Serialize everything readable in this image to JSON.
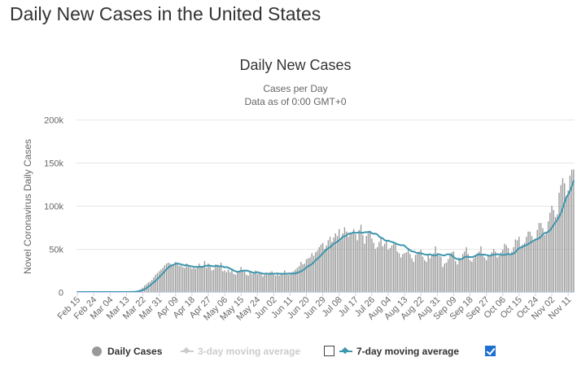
{
  "page_title": "Daily New Cases in the United States",
  "colors": {
    "bar": "#999999",
    "line": "#3d96ae",
    "grid": "#e6e6e6",
    "text": "#333333",
    "axis_text": "#666666",
    "legend_muted": "#cccccc",
    "checkbox_checked": "#1f6fd1"
  },
  "chart_data": {
    "type": "bar",
    "title": "Daily New Cases",
    "subtitle_lines": [
      "Cases per Day",
      "Data as of 0:00 GMT+0"
    ],
    "ylabel": "Novel Coronavirus Daily Cases",
    "xlabel": "",
    "ylim": [
      0,
      200000
    ],
    "yticks": [
      0,
      50000,
      100000,
      150000,
      200000
    ],
    "ytick_labels": [
      "0",
      "50k",
      "100k",
      "150k",
      "200k"
    ],
    "xtick_labels": [
      "Feb 15",
      "Feb 24",
      "Mar 04",
      "Mar 13",
      "Mar 22",
      "Mar 31",
      "Apr 09",
      "Apr 18",
      "Apr 27",
      "May 06",
      "May 15",
      "May 24",
      "Jun 02",
      "Jun 11",
      "Jun 20",
      "Jun 29",
      "Jul 08",
      "Jul 17",
      "Jul 26",
      "Aug 04",
      "Aug 13",
      "Aug 22",
      "Aug 31",
      "Sep 09",
      "Sep 18",
      "Sep 27",
      "Oct 06",
      "Oct 15",
      "Oct 24",
      "Nov 02",
      "Nov 11"
    ],
    "x_start_date": "2020-02-15",
    "x_tick_interval_days": 9,
    "grid": true,
    "legend_position": "bottom",
    "series": [
      {
        "name": "Daily Cases",
        "values": [
          0,
          0,
          0,
          0,
          0,
          0,
          0,
          0,
          0,
          0,
          0,
          0,
          0,
          0,
          0,
          0,
          0,
          0,
          0,
          0,
          0,
          0,
          0,
          0,
          0,
          0,
          0,
          100,
          200,
          300,
          500,
          700,
          1000,
          1500,
          2500,
          3500,
          5000,
          7500,
          9000,
          11000,
          12000,
          14000,
          17000,
          20000,
          22000,
          24000,
          26000,
          28000,
          31000,
          33000,
          34000,
          33000,
          32000,
          31000,
          35000,
          33000,
          30000,
          31000,
          29000,
          28000,
          33000,
          31000,
          29000,
          27000,
          28000,
          27000,
          29000,
          33000,
          30000,
          29000,
          36000,
          28000,
          33000,
          30000,
          25000,
          26000,
          32000,
          30000,
          29000,
          34000,
          24000,
          25000,
          23000,
          26000,
          23000,
          27000,
          21000,
          20000,
          24000,
          24000,
          29000,
          25000,
          24000,
          20000,
          19000,
          24000,
          21000,
          22000,
          25000,
          21000,
          22000,
          21000,
          18000,
          20000,
          22000,
          20000,
          23000,
          24000,
          22000,
          19000,
          21000,
          19000,
          21000,
          21000,
          25000,
          22000,
          20000,
          21000,
          23000,
          24000,
          26000,
          28000,
          30000,
          35000,
          32000,
          33000,
          38000,
          39000,
          40000,
          45000,
          42000,
          46000,
          48000,
          52000,
          55000,
          57000,
          50000,
          54000,
          60000,
          64000,
          58000,
          63000,
          68000,
          65000,
          73000,
          60000,
          68000,
          75000,
          70000,
          64000,
          69000,
          68000,
          73000,
          67000,
          60000,
          72000,
          78000,
          66000,
          56000,
          65000,
          70000,
          71000,
          62000,
          57000,
          50000,
          52000,
          58000,
          63000,
          53000,
          56000,
          59000,
          49000,
          51000,
          54000,
          56000,
          57000,
          47000,
          45000,
          40000,
          44000,
          45000,
          46000,
          51000,
          44000,
          39000,
          35000,
          43000,
          44000,
          47000,
          49000,
          41000,
          37000,
          35000,
          44000,
          39000,
          43000,
          45000,
          53000,
          45000,
          42000,
          41000,
          29000,
          33000,
          34000,
          38000,
          43000,
          46000,
          47000,
          36000,
          32000,
          40000,
          38000,
          44000,
          47000,
          52000,
          44000,
          37000,
          35000,
          39000,
          42000,
          45000,
          47000,
          53000,
          43000,
          40000,
          37000,
          43000,
          41000,
          46000,
          50000,
          47000,
          40000,
          42000,
          46000,
          49000,
          56000,
          54000,
          51000,
          43000,
          47000,
          52000,
          61000,
          60000,
          64000,
          53000,
          55000,
          57000,
          64000,
          70000,
          70000,
          65000,
          60000,
          62000,
          72000,
          80000,
          80000,
          74000,
          66000,
          70000,
          82000,
          92000,
          100000,
          95000,
          87000,
          90000,
          115000,
          124000,
          132000,
          126000,
          110000,
          118000,
          135000,
          142000,
          142000
        ]
      },
      {
        "name": "3-day moving average",
        "visible": false
      },
      {
        "name": "7-day moving average",
        "visible": true,
        "values": [
          0,
          0,
          0,
          0,
          0,
          0,
          0,
          0,
          0,
          0,
          0,
          0,
          0,
          0,
          0,
          0,
          0,
          0,
          0,
          0,
          0,
          0,
          0,
          0,
          0,
          0,
          0,
          14,
          43,
          86,
          157,
          257,
          400,
          614,
          971,
          1471,
          2186,
          3257,
          4543,
          6114,
          7786,
          9428,
          11071,
          12928,
          15000,
          17143,
          19286,
          21571,
          24000,
          26286,
          28286,
          29857,
          31000,
          31714,
          32714,
          33000,
          32571,
          32143,
          31571,
          30714,
          31286,
          30714,
          30143,
          29714,
          29286,
          29143,
          29143,
          29143,
          29286,
          29143,
          30286,
          30286,
          30857,
          30571,
          30143,
          29714,
          30143,
          30571,
          29571,
          30143,
          29429,
          28571,
          28857,
          28285,
          27142,
          26142,
          24856,
          24000,
          23428,
          23856,
          24142,
          24856,
          24714,
          24856,
          24286,
          23571,
          22857,
          22429,
          22143,
          23143,
          22286,
          22000,
          21286,
          21143,
          21429,
          21143,
          20857,
          21286,
          21286,
          21286,
          21571,
          21143,
          21286,
          21143,
          21286,
          21286,
          21429,
          21429,
          21286,
          21429,
          21429,
          22429,
          23000,
          23857,
          25143,
          26571,
          28571,
          29857,
          31143,
          32428,
          34428,
          36714,
          38428,
          40428,
          42571,
          44714,
          47143,
          49285,
          50714,
          51857,
          53857,
          56000,
          57143,
          58143,
          60143,
          61571,
          64428,
          64571,
          65285,
          67428,
          67857,
          68142,
          69285,
          68571,
          68714,
          69285,
          68857,
          68428,
          69285,
          69285,
          69714,
          69714,
          68142,
          67571,
          67714,
          66714,
          64285,
          63142,
          62142,
          60142,
          59428,
          59571,
          58714,
          58000,
          57428,
          56428,
          55428,
          54857,
          54142,
          54428,
          53571,
          51571,
          50000,
          48428,
          47142,
          46857,
          46000,
          45143,
          45143,
          44857,
          44286,
          43571,
          43286,
          43286,
          43714,
          43000,
          42286,
          42286,
          43428,
          43857,
          43000,
          42571,
          42286,
          43571,
          43857,
          43571,
          42571,
          40428,
          39000,
          38142,
          37857,
          38000,
          39000,
          40571,
          41000,
          40714,
          40571,
          40285,
          41142,
          42000,
          43000,
          43857,
          43142,
          43428,
          43428,
          42857,
          42428,
          41857,
          43142,
          43142,
          43571,
          43714,
          43571,
          43142,
          42857,
          43142,
          43428,
          44286,
          43571,
          44000,
          44571,
          46285,
          48714,
          50857,
          51571,
          52571,
          53571,
          54285,
          55714,
          56714,
          58428,
          59571,
          60857,
          61285,
          62428,
          63857,
          66571,
          68428,
          68714,
          69857,
          71428,
          74571,
          77857,
          80857,
          83714,
          87285,
          91571,
          97571,
          103714,
          109857,
          113143,
          117143,
          122429,
          128857
        ]
      }
    ]
  },
  "legend": [
    {
      "label": "Daily Cases",
      "active": true
    },
    {
      "label": "3-day moving average",
      "active": false,
      "checked": false
    },
    {
      "label": "7-day moving average",
      "active": true,
      "checked": true
    }
  ]
}
